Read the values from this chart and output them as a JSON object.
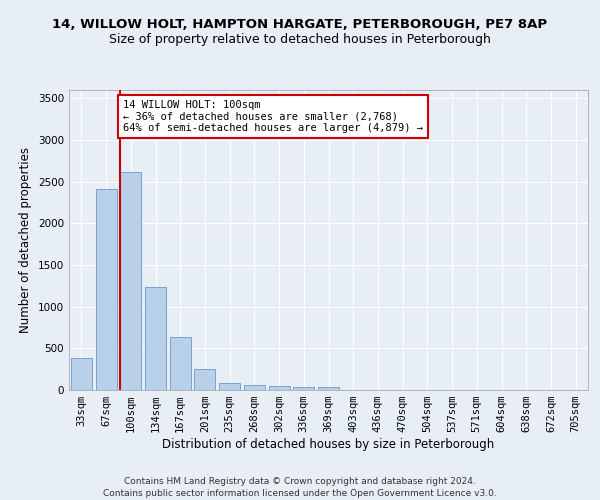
{
  "title1": "14, WILLOW HOLT, HAMPTON HARGATE, PETERBOROUGH, PE7 8AP",
  "title2": "Size of property relative to detached houses in Peterborough",
  "xlabel": "Distribution of detached houses by size in Peterborough",
  "ylabel": "Number of detached properties",
  "categories": [
    "33sqm",
    "67sqm",
    "100sqm",
    "134sqm",
    "167sqm",
    "201sqm",
    "235sqm",
    "268sqm",
    "302sqm",
    "336sqm",
    "369sqm",
    "403sqm",
    "436sqm",
    "470sqm",
    "504sqm",
    "537sqm",
    "571sqm",
    "604sqm",
    "638sqm",
    "672sqm",
    "705sqm"
  ],
  "values": [
    390,
    2410,
    2620,
    1240,
    640,
    255,
    90,
    55,
    50,
    40,
    35,
    0,
    0,
    0,
    0,
    0,
    0,
    0,
    0,
    0,
    0
  ],
  "bar_color": "#b8d0e8",
  "bar_edge_color": "#6699cc",
  "highlight_index": 2,
  "highlight_line_color": "#cc0000",
  "annotation_box_color": "#ffffff",
  "annotation_border_color": "#cc0000",
  "annotation_text_line1": "14 WILLOW HOLT: 100sqm",
  "annotation_text_line2": "← 36% of detached houses are smaller (2,768)",
  "annotation_text_line3": "64% of semi-detached houses are larger (4,879) →",
  "ylim": [
    0,
    3600
  ],
  "yticks": [
    0,
    500,
    1000,
    1500,
    2000,
    2500,
    3000,
    3500
  ],
  "footer1": "Contains HM Land Registry data © Crown copyright and database right 2024.",
  "footer2": "Contains public sector information licensed under the Open Government Licence v3.0.",
  "bg_color": "#e8eef5",
  "plot_bg_color": "#e8eef5",
  "grid_color": "#ffffff",
  "title1_fontsize": 9.5,
  "title2_fontsize": 9,
  "axis_label_fontsize": 8.5,
  "tick_fontsize": 7.5,
  "footer_fontsize": 6.5,
  "annotation_fontsize": 7.5
}
